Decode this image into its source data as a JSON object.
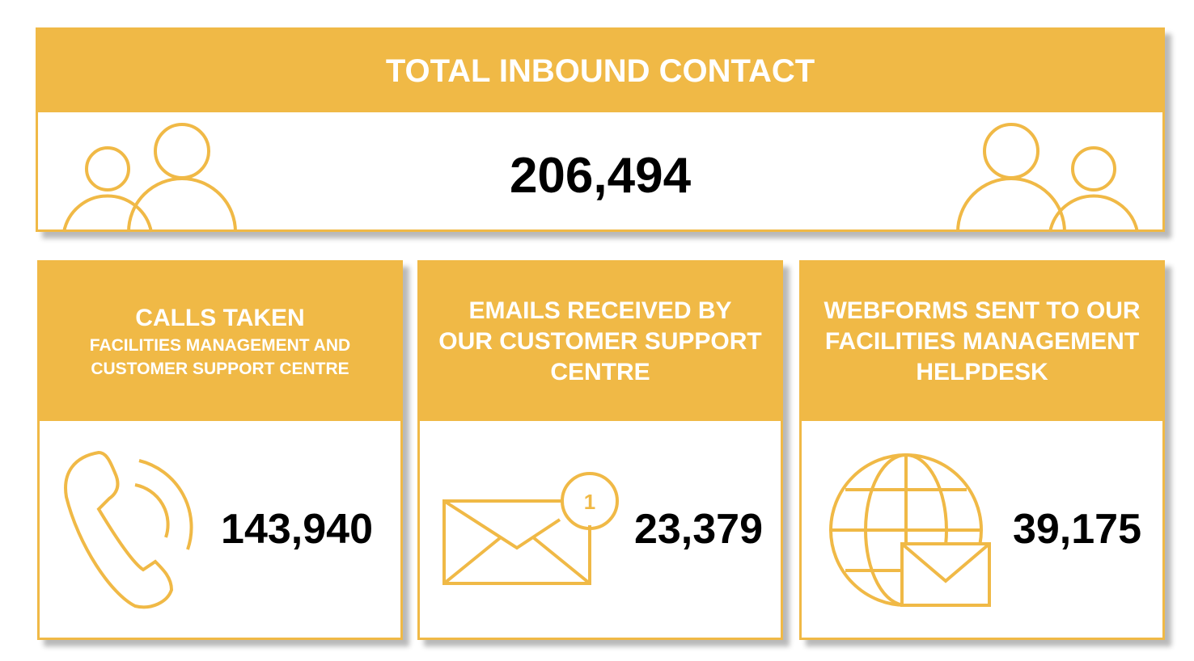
{
  "total": {
    "title": "TOTAL INBOUND CONTACT",
    "value": "206,494"
  },
  "cards": [
    {
      "title_lines": [
        "CALLS TAKEN"
      ],
      "subtitle_lines": [
        "FACILITIES MANAGEMENT AND",
        "CUSTOMER SUPPORT CENTRE"
      ],
      "value": "143,940"
    },
    {
      "title_lines": [
        "EMAILS RECEIVED BY",
        "OUR CUSTOMER SUPPORT",
        "CENTRE"
      ],
      "value": "23,379",
      "badge": "1"
    },
    {
      "title_lines": [
        "WEBFORMS SENT TO OUR",
        "FACILITIES MANAGEMENT",
        "HELPDESK"
      ],
      "value": "39,175"
    }
  ]
}
